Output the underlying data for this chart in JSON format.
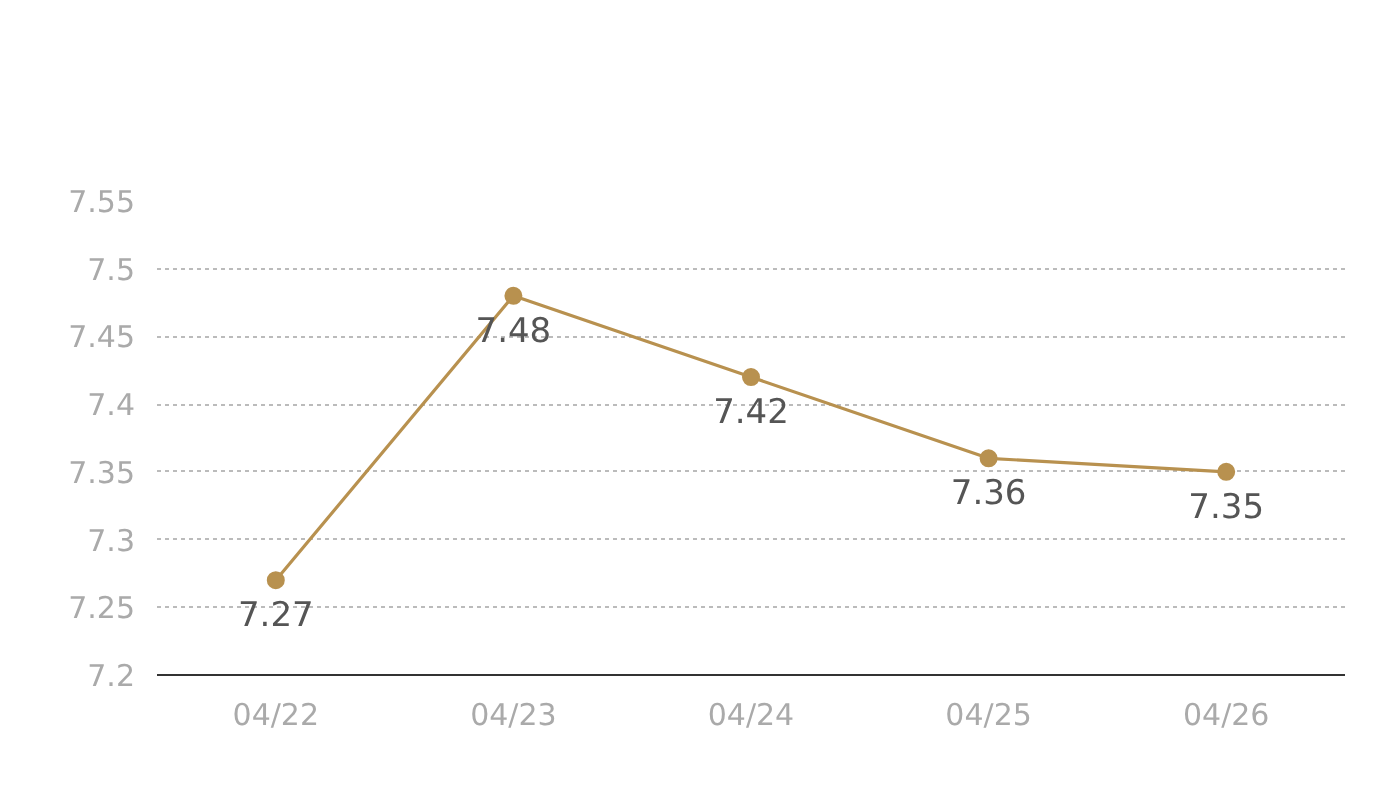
{
  "chart_data": {
    "type": "line",
    "categories": [
      "04/22",
      "04/23",
      "04/24",
      "04/25",
      "04/26"
    ],
    "series": [
      {
        "color": "#b8914f",
        "values": [
          7.27,
          7.48,
          7.42,
          7.36,
          7.35
        ]
      }
    ],
    "ylim": [
      7.2,
      7.55
    ],
    "yticks": [
      7.2,
      7.25,
      7.3,
      7.35,
      7.4,
      7.45,
      7.5,
      7.55
    ],
    "grid": "y",
    "marker": "circle",
    "line_style": "solid",
    "data_labels": true
  }
}
